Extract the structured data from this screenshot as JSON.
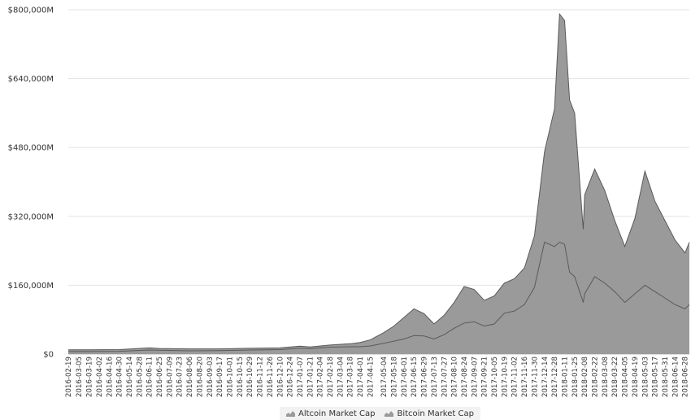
{
  "chart_data": {
    "type": "area",
    "stacked": true,
    "grid": true,
    "legend_position": "bottom-center",
    "ylim": [
      0,
      800000
    ],
    "y_unit": "M",
    "y_ticks": [
      0,
      160000,
      320000,
      480000,
      640000,
      800000
    ],
    "y_tick_labels": [
      "$0",
      "$160,000M",
      "$320,000M",
      "$480,000M",
      "$640,000M",
      "$800,000M"
    ],
    "x_tick_labels": [
      "2016-02-19",
      "2016-03-05",
      "2016-03-19",
      "2016-04-02",
      "2016-04-16",
      "2016-04-30",
      "2016-05-14",
      "2016-05-28",
      "2016-06-11",
      "2016-06-25",
      "2016-07-09",
      "2016-07-23",
      "2016-08-06",
      "2016-08-20",
      "2016-09-03",
      "2016-09-17",
      "2016-10-01",
      "2016-10-15",
      "2016-10-29",
      "2016-11-12",
      "2016-11-26",
      "2016-12-10",
      "2016-12-24",
      "2017-01-07",
      "2017-01-21",
      "2017-02-04",
      "2017-02-18",
      "2017-03-04",
      "2017-03-18",
      "2017-04-01",
      "2017-04-15",
      "2017-05-04",
      "2017-05-18",
      "2017-06-01",
      "2017-06-15",
      "2017-06-29",
      "2017-07-13",
      "2017-07-27",
      "2017-08-10",
      "2017-08-24",
      "2017-09-07",
      "2017-09-21",
      "2017-10-05",
      "2017-10-19",
      "2017-11-02",
      "2017-11-16",
      "2017-11-30",
      "2017-12-14",
      "2017-12-28",
      "2018-01-11",
      "2018-01-25",
      "2018-02-08",
      "2018-02-22",
      "2018-03-08",
      "2018-03-22",
      "2018-04-05",
      "2018-04-19",
      "2018-05-03",
      "2018-05-17",
      "2018-05-31",
      "2018-06-14",
      "2018-06-28"
    ],
    "series": [
      {
        "name": "Altcoin Market Cap",
        "color": "#9a9a9a"
      },
      {
        "name": "Bitcoin Market Cap",
        "color": "#9a9a9a"
      }
    ],
    "points": [
      {
        "x": "2016-02-19",
        "altcoin": 4000,
        "bitcoin": 6000
      },
      {
        "x": "2016-03-19",
        "altcoin": 4000,
        "bitcoin": 6000
      },
      {
        "x": "2016-04-30",
        "altcoin": 4000,
        "bitcoin": 6500
      },
      {
        "x": "2016-06-11",
        "altcoin": 5000,
        "bitcoin": 9500
      },
      {
        "x": "2016-06-25",
        "altcoin": 4000,
        "bitcoin": 9000
      },
      {
        "x": "2016-08-06",
        "altcoin": 4500,
        "bitcoin": 7500
      },
      {
        "x": "2016-09-17",
        "altcoin": 4000,
        "bitcoin": 8000
      },
      {
        "x": "2016-10-29",
        "altcoin": 4000,
        "bitcoin": 9500
      },
      {
        "x": "2016-12-10",
        "altcoin": 4000,
        "bitcoin": 10500
      },
      {
        "x": "2017-01-07",
        "altcoin": 5000,
        "bitcoin": 13500
      },
      {
        "x": "2017-01-21",
        "altcoin": 4000,
        "bitcoin": 12500
      },
      {
        "x": "2017-02-18",
        "altcoin": 5000,
        "bitcoin": 16000
      },
      {
        "x": "2017-03-18",
        "altcoin": 7000,
        "bitcoin": 17000
      },
      {
        "x": "2017-04-01",
        "altcoin": 10000,
        "bitcoin": 17000
      },
      {
        "x": "2017-04-15",
        "altcoin": 14000,
        "bitcoin": 19000
      },
      {
        "x": "2017-05-04",
        "altcoin": 25000,
        "bitcoin": 25000
      },
      {
        "x": "2017-05-18",
        "altcoin": 35000,
        "bitcoin": 30000
      },
      {
        "x": "2017-06-01",
        "altcoin": 50000,
        "bitcoin": 35000
      },
      {
        "x": "2017-06-15",
        "altcoin": 62000,
        "bitcoin": 43000
      },
      {
        "x": "2017-06-29",
        "altcoin": 52000,
        "bitcoin": 42000
      },
      {
        "x": "2017-07-13",
        "altcoin": 35000,
        "bitcoin": 35000
      },
      {
        "x": "2017-07-27",
        "altcoin": 45000,
        "bitcoin": 45000
      },
      {
        "x": "2017-08-10",
        "altcoin": 60000,
        "bitcoin": 60000
      },
      {
        "x": "2017-08-24",
        "altcoin": 85000,
        "bitcoin": 72000
      },
      {
        "x": "2017-09-07",
        "altcoin": 75000,
        "bitcoin": 75000
      },
      {
        "x": "2017-09-21",
        "altcoin": 60000,
        "bitcoin": 65000
      },
      {
        "x": "2017-10-05",
        "altcoin": 65000,
        "bitcoin": 70000
      },
      {
        "x": "2017-10-19",
        "altcoin": 70000,
        "bitcoin": 95000
      },
      {
        "x": "2017-11-02",
        "altcoin": 75000,
        "bitcoin": 100000
      },
      {
        "x": "2017-11-16",
        "altcoin": 85000,
        "bitcoin": 115000
      },
      {
        "x": "2017-11-30",
        "altcoin": 120000,
        "bitcoin": 155000
      },
      {
        "x": "2017-12-14",
        "altcoin": 210000,
        "bitcoin": 260000
      },
      {
        "x": "2017-12-28",
        "altcoin": 320000,
        "bitcoin": 250000
      },
      {
        "x": "2018-01-04",
        "altcoin": 530000,
        "bitcoin": 260000
      },
      {
        "x": "2018-01-11",
        "altcoin": 520000,
        "bitcoin": 255000
      },
      {
        "x": "2018-01-18",
        "altcoin": 400000,
        "bitcoin": 190000
      },
      {
        "x": "2018-01-25",
        "altcoin": 380000,
        "bitcoin": 180000
      },
      {
        "x": "2018-02-06",
        "altcoin": 170000,
        "bitcoin": 120000
      },
      {
        "x": "2018-02-08",
        "altcoin": 230000,
        "bitcoin": 140000
      },
      {
        "x": "2018-02-22",
        "altcoin": 250000,
        "bitcoin": 180000
      },
      {
        "x": "2018-03-08",
        "altcoin": 215000,
        "bitcoin": 165000
      },
      {
        "x": "2018-03-22",
        "altcoin": 165000,
        "bitcoin": 145000
      },
      {
        "x": "2018-04-05",
        "altcoin": 130000,
        "bitcoin": 120000
      },
      {
        "x": "2018-04-19",
        "altcoin": 175000,
        "bitcoin": 140000
      },
      {
        "x": "2018-05-03",
        "altcoin": 265000,
        "bitcoin": 160000
      },
      {
        "x": "2018-05-17",
        "altcoin": 210000,
        "bitcoin": 145000
      },
      {
        "x": "2018-05-31",
        "altcoin": 180000,
        "bitcoin": 130000
      },
      {
        "x": "2018-06-14",
        "altcoin": 150000,
        "bitcoin": 115000
      },
      {
        "x": "2018-06-28",
        "altcoin": 130000,
        "bitcoin": 105000
      },
      {
        "x": "2018-07-04",
        "altcoin": 145000,
        "bitcoin": 115000
      }
    ]
  },
  "legend": {
    "altcoin_label": "Altcoin Market Cap",
    "bitcoin_label": "Bitcoin Market Cap"
  }
}
